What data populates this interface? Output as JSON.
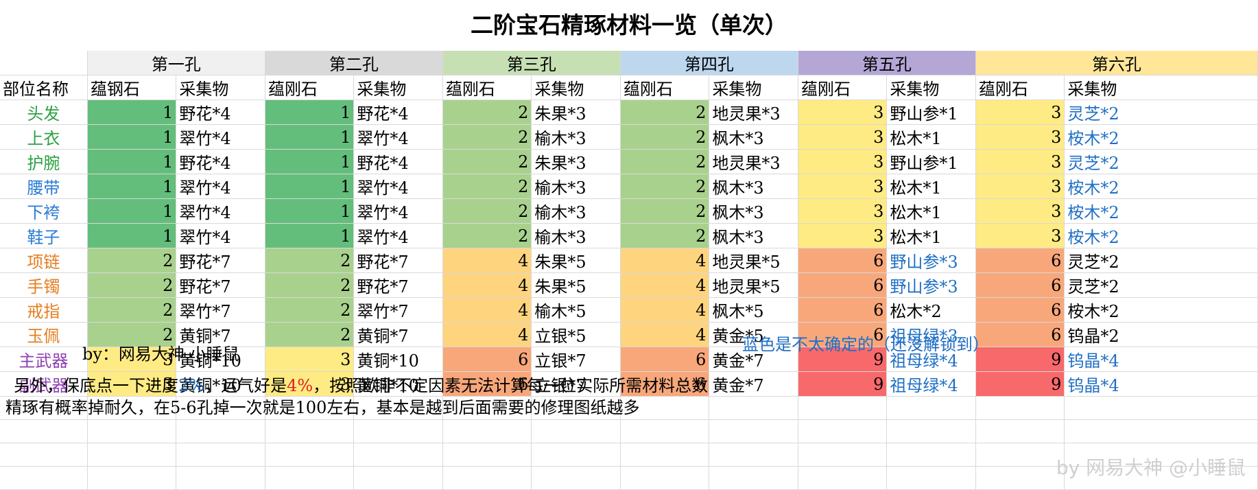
{
  "title": "二阶宝石精琢材料一览（单次）",
  "holes": [
    {
      "label": "第一孔",
      "color": "#f0f0f0"
    },
    {
      "label": "第二孔",
      "color": "#d9d9d9"
    },
    {
      "label": "第三孔",
      "color": "#c6e0b4"
    },
    {
      "label": "第四孔",
      "color": "#bdd7ee"
    },
    {
      "label": "第五孔",
      "color": "#b4a7d6"
    },
    {
      "label": "第六孔",
      "color": "#ffe699"
    }
  ],
  "col_headers": {
    "part": "部位名称",
    "stone_cols": [
      "蕴钢石",
      "蕴刚石",
      "蕴刚石",
      "蕴刚石",
      "蕴刚石",
      "蕴刚石"
    ],
    "mat": "采集物"
  },
  "fill_colors": {
    "dark_green": "#63be7b",
    "light_green": "#a9d18e",
    "yellow": "#ffeb84",
    "amber": "#ffd47f",
    "orange": "#f8a77b",
    "red": "#f8696b"
  },
  "rows": [
    {
      "part": "头发",
      "color": "c-green",
      "cells": [
        {
          "n": "1",
          "m": "野花*4",
          "f": "dark_green"
        },
        {
          "n": "1",
          "m": "野花*4",
          "f": "dark_green"
        },
        {
          "n": "2",
          "m": "朱果*3",
          "f": "light_green"
        },
        {
          "n": "2",
          "m": "地灵果*3",
          "f": "light_green"
        },
        {
          "n": "3",
          "m": "野山参*1",
          "f": "yellow"
        },
        {
          "n": "3",
          "m": "灵芝*2",
          "f": "yellow",
          "mb": true
        }
      ]
    },
    {
      "part": "上衣",
      "color": "c-green",
      "cells": [
        {
          "n": "1",
          "m": "翠竹*4",
          "f": "dark_green"
        },
        {
          "n": "1",
          "m": "翠竹*4",
          "f": "dark_green"
        },
        {
          "n": "2",
          "m": "榆木*3",
          "f": "light_green"
        },
        {
          "n": "2",
          "m": "枫木*3",
          "f": "light_green"
        },
        {
          "n": "3",
          "m": "松木*1",
          "f": "yellow"
        },
        {
          "n": "3",
          "m": "桉木*2",
          "f": "yellow",
          "mb": true
        }
      ]
    },
    {
      "part": "护腕",
      "color": "c-green",
      "cells": [
        {
          "n": "1",
          "m": "野花*4",
          "f": "dark_green"
        },
        {
          "n": "1",
          "m": "野花*4",
          "f": "dark_green"
        },
        {
          "n": "2",
          "m": "朱果*3",
          "f": "light_green"
        },
        {
          "n": "2",
          "m": "地灵果*3",
          "f": "light_green"
        },
        {
          "n": "3",
          "m": "野山参*1",
          "f": "yellow"
        },
        {
          "n": "3",
          "m": "灵芝*2",
          "f": "yellow",
          "mb": true
        }
      ]
    },
    {
      "part": "腰带",
      "color": "c-blue",
      "sep": true,
      "cells": [
        {
          "n": "1",
          "m": "翠竹*4",
          "f": "dark_green"
        },
        {
          "n": "1",
          "m": "翠竹*4",
          "f": "dark_green"
        },
        {
          "n": "2",
          "m": "榆木*3",
          "f": "light_green"
        },
        {
          "n": "2",
          "m": "枫木*3",
          "f": "light_green"
        },
        {
          "n": "3",
          "m": "松木*1",
          "f": "yellow"
        },
        {
          "n": "3",
          "m": "桉木*2",
          "f": "yellow",
          "mb": true
        }
      ]
    },
    {
      "part": "下袴",
      "color": "c-blue",
      "cells": [
        {
          "n": "1",
          "m": "翠竹*4",
          "f": "dark_green"
        },
        {
          "n": "1",
          "m": "翠竹*4",
          "f": "dark_green"
        },
        {
          "n": "2",
          "m": "榆木*3",
          "f": "light_green"
        },
        {
          "n": "2",
          "m": "枫木*3",
          "f": "light_green"
        },
        {
          "n": "3",
          "m": "松木*1",
          "f": "yellow"
        },
        {
          "n": "3",
          "m": "桉木*2",
          "f": "yellow",
          "mb": true
        }
      ]
    },
    {
      "part": "鞋子",
      "color": "c-blue",
      "cells": [
        {
          "n": "1",
          "m": "翠竹*4",
          "f": "dark_green"
        },
        {
          "n": "1",
          "m": "翠竹*4",
          "f": "dark_green"
        },
        {
          "n": "2",
          "m": "榆木*3",
          "f": "light_green"
        },
        {
          "n": "2",
          "m": "枫木*3",
          "f": "light_green"
        },
        {
          "n": "3",
          "m": "松木*1",
          "f": "yellow"
        },
        {
          "n": "3",
          "m": "桉木*2",
          "f": "yellow",
          "mb": true
        }
      ]
    },
    {
      "part": "项链",
      "color": "c-orange",
      "sep": true,
      "cells": [
        {
          "n": "2",
          "m": "野花*7",
          "f": "light_green"
        },
        {
          "n": "2",
          "m": "野花*7",
          "f": "light_green"
        },
        {
          "n": "4",
          "m": "朱果*5",
          "f": "amber"
        },
        {
          "n": "4",
          "m": "地灵果*5",
          "f": "amber"
        },
        {
          "n": "6",
          "m": "野山参*3",
          "f": "orange",
          "mb": true
        },
        {
          "n": "6",
          "m": "灵芝*2",
          "f": "orange"
        }
      ]
    },
    {
      "part": "手镯",
      "color": "c-orange",
      "cells": [
        {
          "n": "2",
          "m": "野花*7",
          "f": "light_green"
        },
        {
          "n": "2",
          "m": "野花*7",
          "f": "light_green"
        },
        {
          "n": "4",
          "m": "朱果*5",
          "f": "amber"
        },
        {
          "n": "4",
          "m": "地灵果*5",
          "f": "amber"
        },
        {
          "n": "6",
          "m": "野山参*3",
          "f": "orange",
          "mb": true
        },
        {
          "n": "6",
          "m": "灵芝*2",
          "f": "orange"
        }
      ]
    },
    {
      "part": "戒指",
      "color": "c-orange",
      "cells": [
        {
          "n": "2",
          "m": "翠竹*7",
          "f": "light_green"
        },
        {
          "n": "2",
          "m": "翠竹*7",
          "f": "light_green"
        },
        {
          "n": "4",
          "m": "榆木*5",
          "f": "amber"
        },
        {
          "n": "4",
          "m": "枫木*5",
          "f": "amber"
        },
        {
          "n": "6",
          "m": "松木*2",
          "f": "orange"
        },
        {
          "n": "6",
          "m": "桉木*2",
          "f": "orange"
        }
      ]
    },
    {
      "part": "玉佩",
      "color": "c-orange",
      "cells": [
        {
          "n": "2",
          "m": "黄铜*7",
          "f": "light_green"
        },
        {
          "n": "2",
          "m": "黄铜*7",
          "f": "light_green"
        },
        {
          "n": "4",
          "m": "立银*5",
          "f": "amber"
        },
        {
          "n": "4",
          "m": "黄金*5",
          "f": "amber"
        },
        {
          "n": "6",
          "m": "祖母绿*3",
          "f": "orange",
          "mb": true
        },
        {
          "n": "6",
          "m": "钨晶*2",
          "f": "orange"
        }
      ]
    },
    {
      "part": "主武器",
      "color": "c-purple",
      "sep": true,
      "cells": [
        {
          "n": "3",
          "m": "黄铜*10",
          "f": "yellow"
        },
        {
          "n": "3",
          "m": "黄铜*10",
          "f": "yellow"
        },
        {
          "n": "6",
          "m": "立银*7",
          "f": "orange"
        },
        {
          "n": "6",
          "m": "黄金*7",
          "f": "orange"
        },
        {
          "n": "9",
          "m": "祖母绿*4",
          "f": "red",
          "mb": true
        },
        {
          "n": "9",
          "m": "钨晶*4",
          "f": "red",
          "mb": true
        }
      ]
    },
    {
      "part": "副武器",
      "color": "c-purple",
      "cells": [
        {
          "n": "3",
          "m": "黄铜*10",
          "f": "yellow"
        },
        {
          "n": "3",
          "m": "黄铜*10",
          "f": "yellow"
        },
        {
          "n": "6",
          "m": "立银*7",
          "f": "orange"
        },
        {
          "n": "6",
          "m": "黄金*7",
          "f": "orange"
        },
        {
          "n": "9",
          "m": "祖母绿*4",
          "f": "red",
          "mb": true
        },
        {
          "n": "9",
          "m": "钨晶*4",
          "f": "red",
          "mb": true
        }
      ]
    }
  ],
  "footer": {
    "author": "by：网易大神  小睡鼠",
    "blue_note": "蓝色是不太确定的（还没解锁到）",
    "line1_a": "另外，保底点一下进度",
    "line1_b": "2%",
    "line1_c": "，运气好是",
    "line1_d": "4%",
    "line1_e": "，按照欧非不定因素无法计算每一位实际所需材料总数",
    "line2": "精琢有概率掉耐久，在5-6孔掉一次就是100左右，基本是越到后面需要的修理图纸越多",
    "watermark": "by 网易大神 @小睡鼠"
  }
}
